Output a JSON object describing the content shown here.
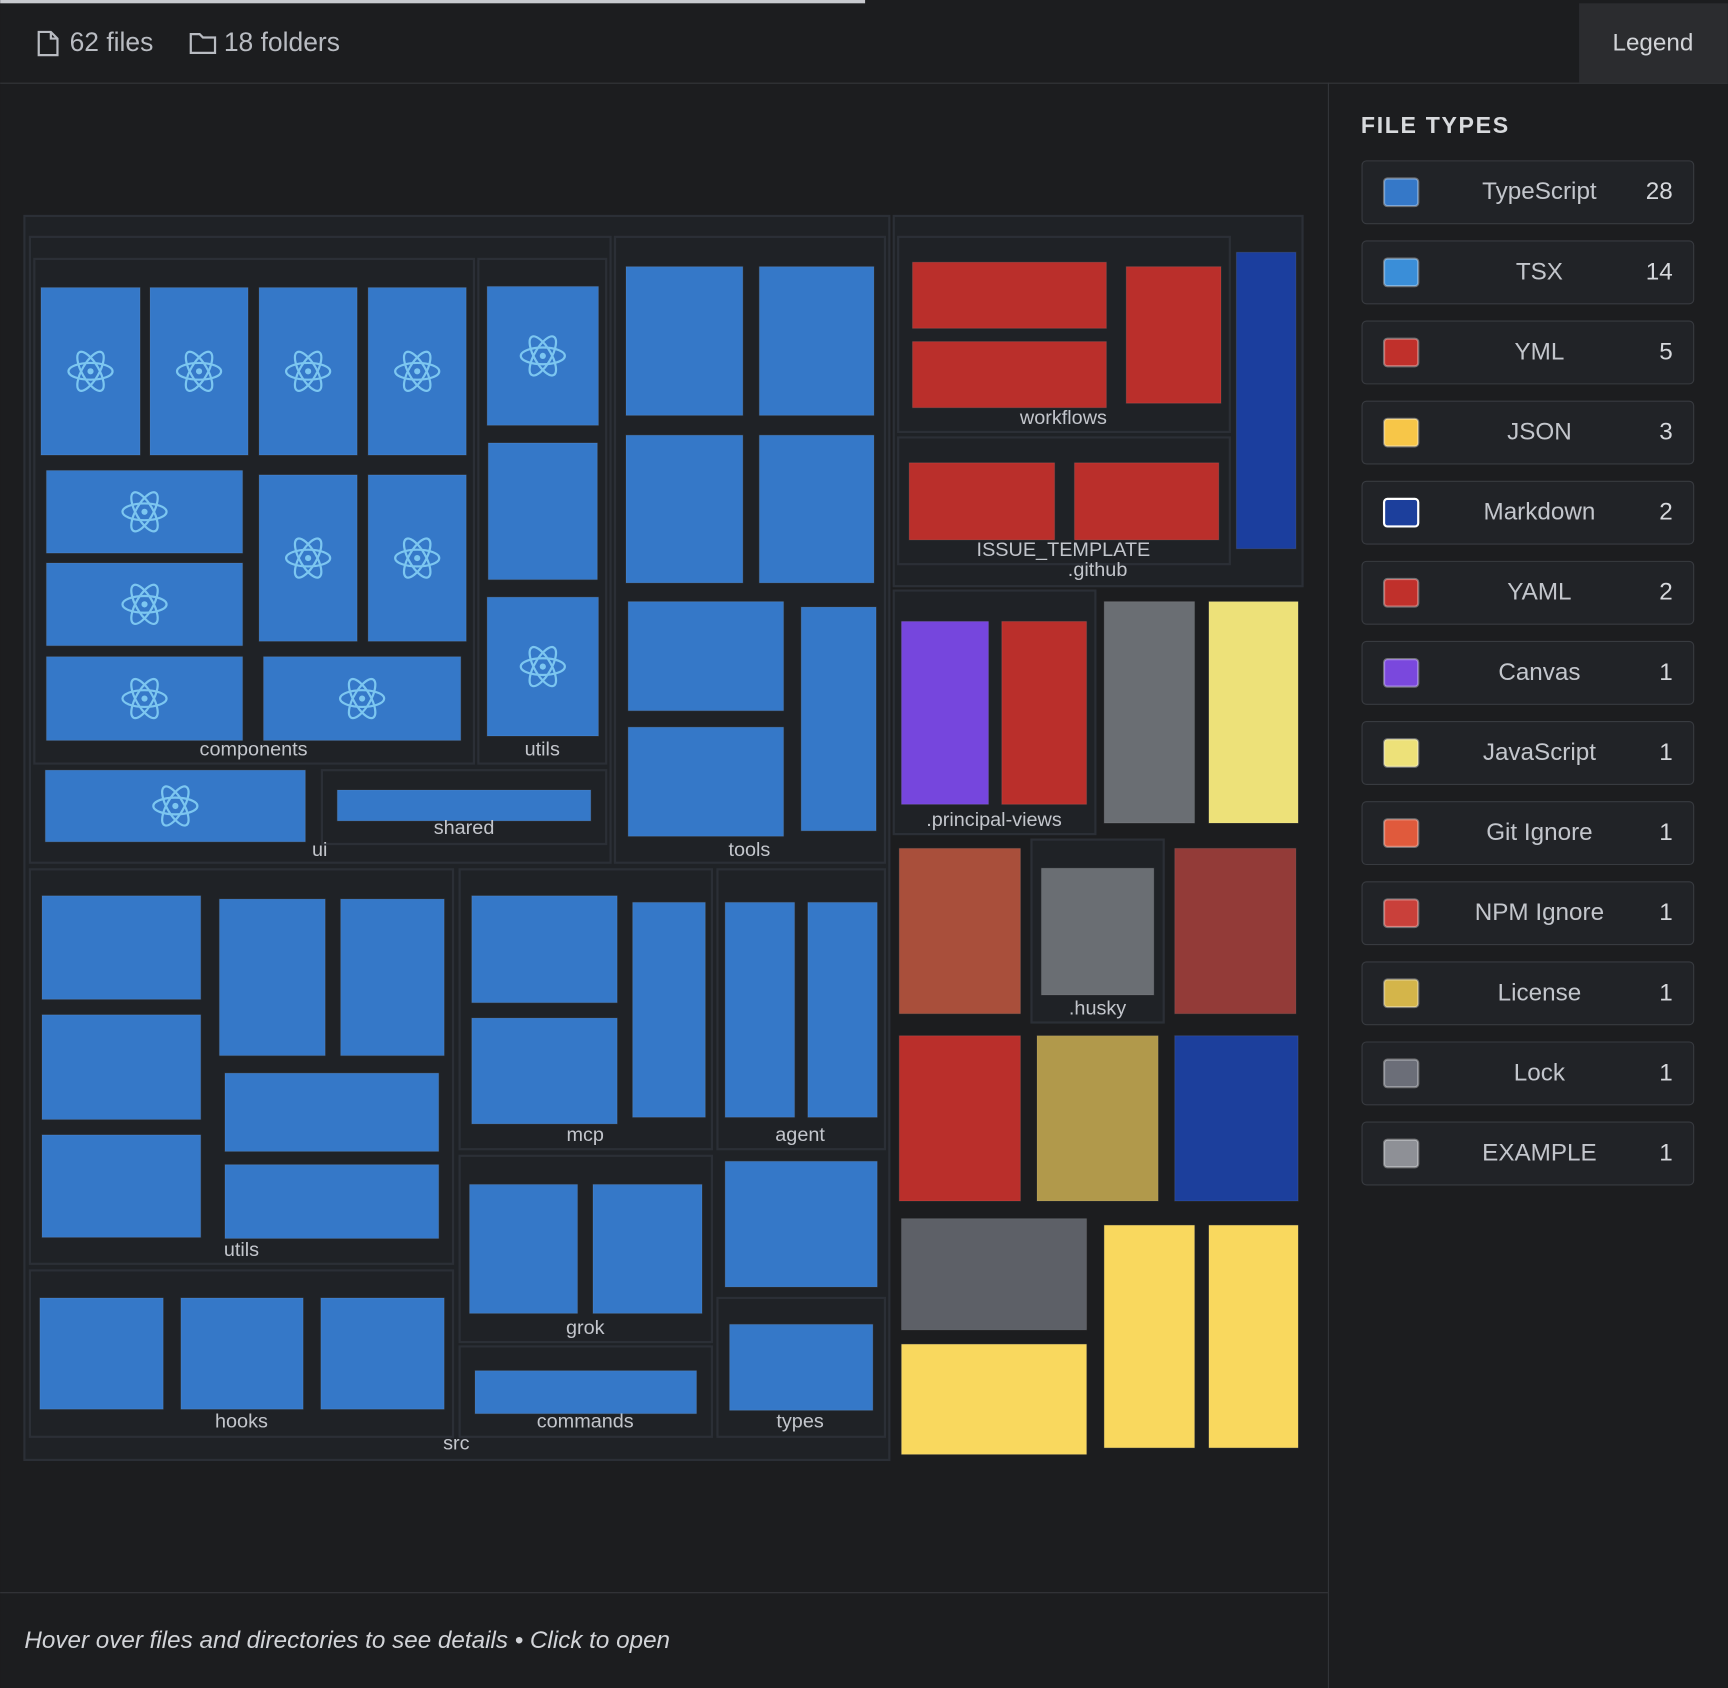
{
  "header": {
    "files": "62 files",
    "folders": "18 folders",
    "legend_button": "Legend"
  },
  "legend": {
    "title": "FILE TYPES",
    "items": [
      {
        "name": "TypeScript",
        "count": 28,
        "color": "#3578c8"
      },
      {
        "name": "TSX",
        "count": 14,
        "color": "#3a8ed8"
      },
      {
        "name": "YML",
        "count": 5,
        "color": "#c0302b"
      },
      {
        "name": "JSON",
        "count": 3,
        "color": "#f7c648"
      },
      {
        "name": "Markdown",
        "count": 2,
        "color": "#1c3f9c"
      },
      {
        "name": "YAML",
        "count": 2,
        "color": "#c0302b"
      },
      {
        "name": "Canvas",
        "count": 1,
        "color": "#7a48dd"
      },
      {
        "name": "JavaScript",
        "count": 1,
        "color": "#ede179"
      },
      {
        "name": "Git Ignore",
        "count": 1,
        "color": "#e05a3c"
      },
      {
        "name": "NPM Ignore",
        "count": 1,
        "color": "#c9403a"
      },
      {
        "name": "License",
        "count": 1,
        "color": "#d4b54a"
      },
      {
        "name": "Lock",
        "count": 1,
        "color": "#6b6e78"
      },
      {
        "name": "EXAMPLE",
        "count": 1,
        "color": "#8e9096"
      }
    ]
  },
  "treemap": {
    "folders": [
      {
        "label": "components"
      },
      {
        "label": "utils"
      },
      {
        "label": "shared"
      },
      {
        "label": "ui"
      },
      {
        "label": "tools"
      },
      {
        "label": "workflows"
      },
      {
        "label": "ISSUE_TEMPLATE"
      },
      {
        "label": ".github"
      },
      {
        "label": ".principal-views"
      },
      {
        "label": ".husky"
      },
      {
        "label": "utils"
      },
      {
        "label": "mcp"
      },
      {
        "label": "agent"
      },
      {
        "label": "grok"
      },
      {
        "label": "hooks"
      },
      {
        "label": "commands"
      },
      {
        "label": "types"
      },
      {
        "label": "src"
      }
    ]
  },
  "footer": {
    "hint": "Hover over files and directories to see details • Click to open"
  }
}
